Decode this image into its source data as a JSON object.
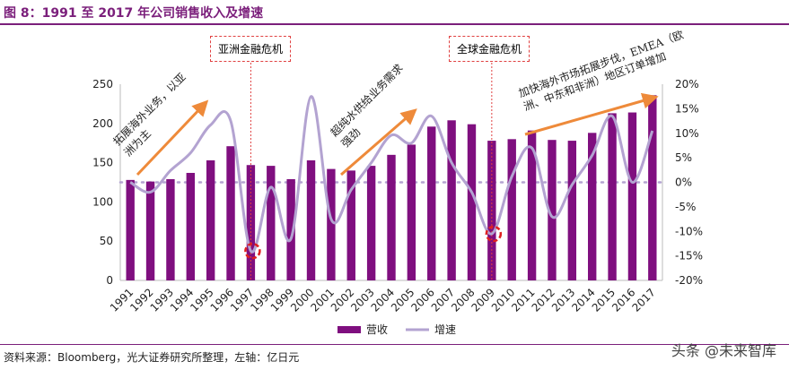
{
  "title": "图 8：1991 至 2017 年公司销售收入及增速",
  "source": "资料来源：Bloomberg，光大证券研究所整理，左轴：亿日元",
  "watermark": "头条 @未来智库",
  "annotations": {
    "asia_crisis": "亚洲金融危机",
    "global_crisis": "全球金融危机",
    "phase1": "拓展海外业务，以亚洲为主",
    "phase2": "超纯水供给业务需求强劲",
    "phase3": "加快海外市场拓展步伐，EMEA（欧洲、中东和非洲）地区订单增加"
  },
  "colors": {
    "bar": "#7f0f7f",
    "line": "#b3a3d1",
    "arrow": "#ee8a3a",
    "highlight": "#e02020",
    "title": "#7b1f7b"
  },
  "chart_data": {
    "type": "bar+line",
    "categories": [
      "1991",
      "1992",
      "1993",
      "1994",
      "1995",
      "1996",
      "1997",
      "1998",
      "1999",
      "2000",
      "2001",
      "2002",
      "2003",
      "2004",
      "2005",
      "2006",
      "2007",
      "2008",
      "2009",
      "2010",
      "2011",
      "2012",
      "2013",
      "2014",
      "2015",
      "2016",
      "2017"
    ],
    "series": [
      {
        "name": "营收",
        "type": "bar",
        "axis": "left",
        "values": [
          128,
          126,
          129,
          137,
          153,
          171,
          147,
          146,
          129,
          153,
          142,
          140,
          146,
          160,
          173,
          196,
          204,
          199,
          178,
          180,
          191,
          179,
          178,
          188,
          213,
          214,
          236
        ]
      },
      {
        "name": "增速",
        "type": "line",
        "axis": "right",
        "values": [
          0,
          -2,
          2.4,
          6,
          11.7,
          12.5,
          -14,
          -1,
          -11.5,
          17.5,
          -7.5,
          -1.5,
          4,
          9.6,
          8,
          13.5,
          4,
          -2,
          -10.5,
          1.2,
          7,
          -7,
          -0.5,
          5.5,
          13.5,
          0,
          10.5
        ]
      }
    ],
    "left_axis": {
      "ylim": [
        0,
        250
      ],
      "ticks": [
        "0",
        "50",
        "100",
        "150",
        "200",
        "250"
      ]
    },
    "right_axis": {
      "ylim": [
        -20,
        20
      ],
      "ticks": [
        "-20%",
        "-15%",
        "-10%",
        "-5%",
        "0%",
        "5%",
        "10%",
        "15%",
        "20%"
      ]
    },
    "legend": {
      "position": "bottom",
      "entries": [
        "营收",
        "增速"
      ]
    },
    "grid": false
  }
}
